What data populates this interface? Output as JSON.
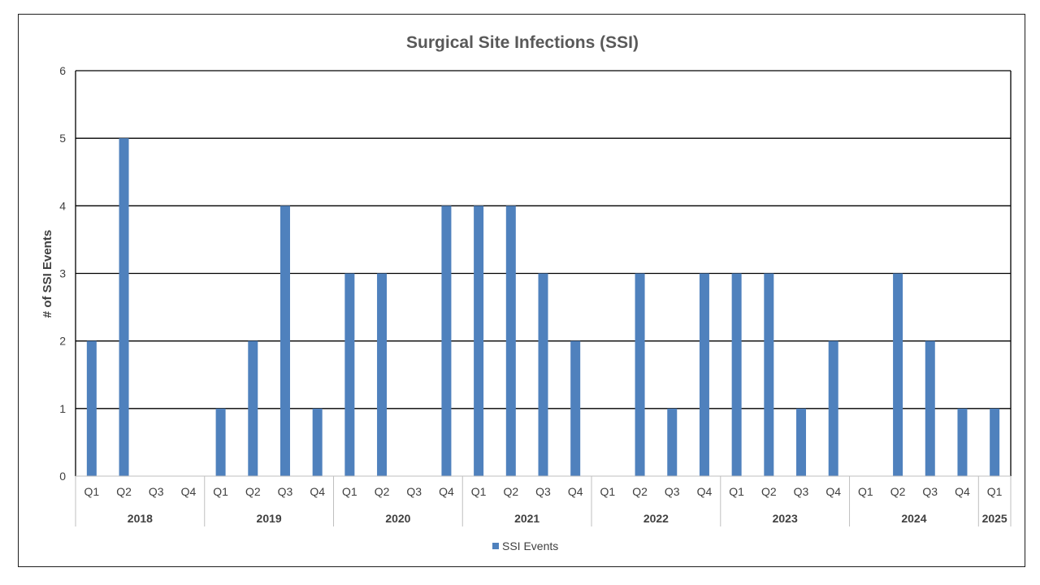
{
  "chart_data": {
    "type": "bar",
    "title": "Surgical Site Infections (SSI)",
    "ylabel": "# of SSI Events",
    "xlabel": "",
    "ylim": [
      0,
      6
    ],
    "yticks": [
      "0",
      "1",
      "2",
      "3",
      "4",
      "5",
      "6"
    ],
    "grid": true,
    "legend_position": "bottom",
    "categories": [
      {
        "year": "2018",
        "quarter": "Q1"
      },
      {
        "year": "2018",
        "quarter": "Q2"
      },
      {
        "year": "2018",
        "quarter": "Q3"
      },
      {
        "year": "2018",
        "quarter": "Q4"
      },
      {
        "year": "2019",
        "quarter": "Q1"
      },
      {
        "year": "2019",
        "quarter": "Q2"
      },
      {
        "year": "2019",
        "quarter": "Q3"
      },
      {
        "year": "2019",
        "quarter": "Q4"
      },
      {
        "year": "2020",
        "quarter": "Q1"
      },
      {
        "year": "2020",
        "quarter": "Q2"
      },
      {
        "year": "2020",
        "quarter": "Q3"
      },
      {
        "year": "2020",
        "quarter": "Q4"
      },
      {
        "year": "2021",
        "quarter": "Q1"
      },
      {
        "year": "2021",
        "quarter": "Q2"
      },
      {
        "year": "2021",
        "quarter": "Q3"
      },
      {
        "year": "2021",
        "quarter": "Q4"
      },
      {
        "year": "2022",
        "quarter": "Q1"
      },
      {
        "year": "2022",
        "quarter": "Q2"
      },
      {
        "year": "2022",
        "quarter": "Q3"
      },
      {
        "year": "2022",
        "quarter": "Q4"
      },
      {
        "year": "2023",
        "quarter": "Q1"
      },
      {
        "year": "2023",
        "quarter": "Q2"
      },
      {
        "year": "2023",
        "quarter": "Q3"
      },
      {
        "year": "2023",
        "quarter": "Q4"
      },
      {
        "year": "2024",
        "quarter": "Q1"
      },
      {
        "year": "2024",
        "quarter": "Q2"
      },
      {
        "year": "2024",
        "quarter": "Q3"
      },
      {
        "year": "2024",
        "quarter": "Q4"
      },
      {
        "year": "2025",
        "quarter": "Q1"
      }
    ],
    "years": [
      "2018",
      "2019",
      "2020",
      "2021",
      "2022",
      "2023",
      "2024",
      "2025"
    ],
    "series": [
      {
        "name": "SSI Events",
        "color": "#4f81bd",
        "values": [
          2,
          5,
          0,
          0,
          1,
          2,
          4,
          1,
          3,
          3,
          0,
          4,
          4,
          4,
          3,
          2,
          0,
          3,
          1,
          3,
          3,
          3,
          1,
          2,
          0,
          3,
          2,
          1,
          1
        ]
      }
    ]
  }
}
